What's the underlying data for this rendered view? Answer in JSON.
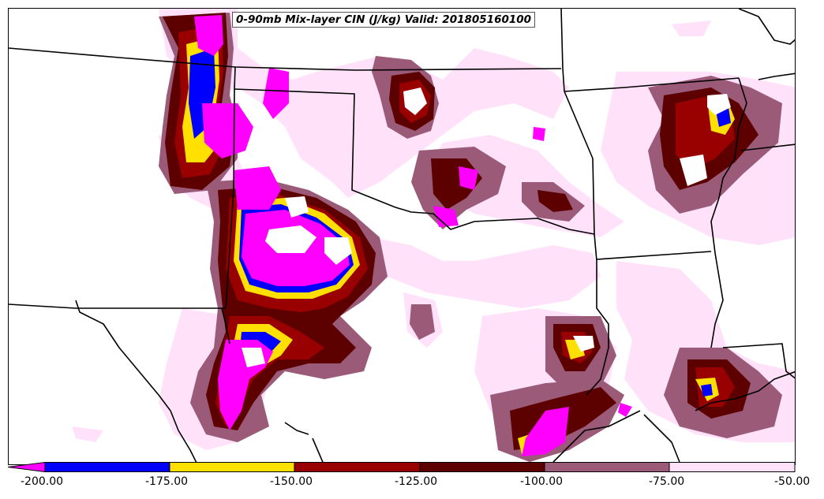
{
  "title": "0-90mb Mix-layer CIN (J/kg) Valid: 201805160100",
  "colorbar": {
    "colors": [
      "#ff00ff",
      "#0000ff",
      "#ffe000",
      "#990000",
      "#5c0000",
      "#9a5a78",
      "#ffe2fa"
    ],
    "bins": [
      {
        "lo": -200,
        "hi": -175,
        "color": "#0000ff"
      },
      {
        "lo": -175,
        "hi": -150,
        "color": "#ffe000"
      },
      {
        "lo": -150,
        "hi": -125,
        "color": "#990000"
      },
      {
        "lo": -125,
        "hi": -100,
        "color": "#5c0000"
      },
      {
        "lo": -100,
        "hi": -75,
        "color": "#9a5a78"
      },
      {
        "lo": -75,
        "hi": -50,
        "color": "#ffe2fa"
      }
    ],
    "below_min_color": "#ff00ff",
    "labels": [
      "-200.00",
      "-175.00",
      "-150.00",
      "-125.00",
      "-100.00",
      "-75.00",
      "-50.00"
    ]
  }
}
